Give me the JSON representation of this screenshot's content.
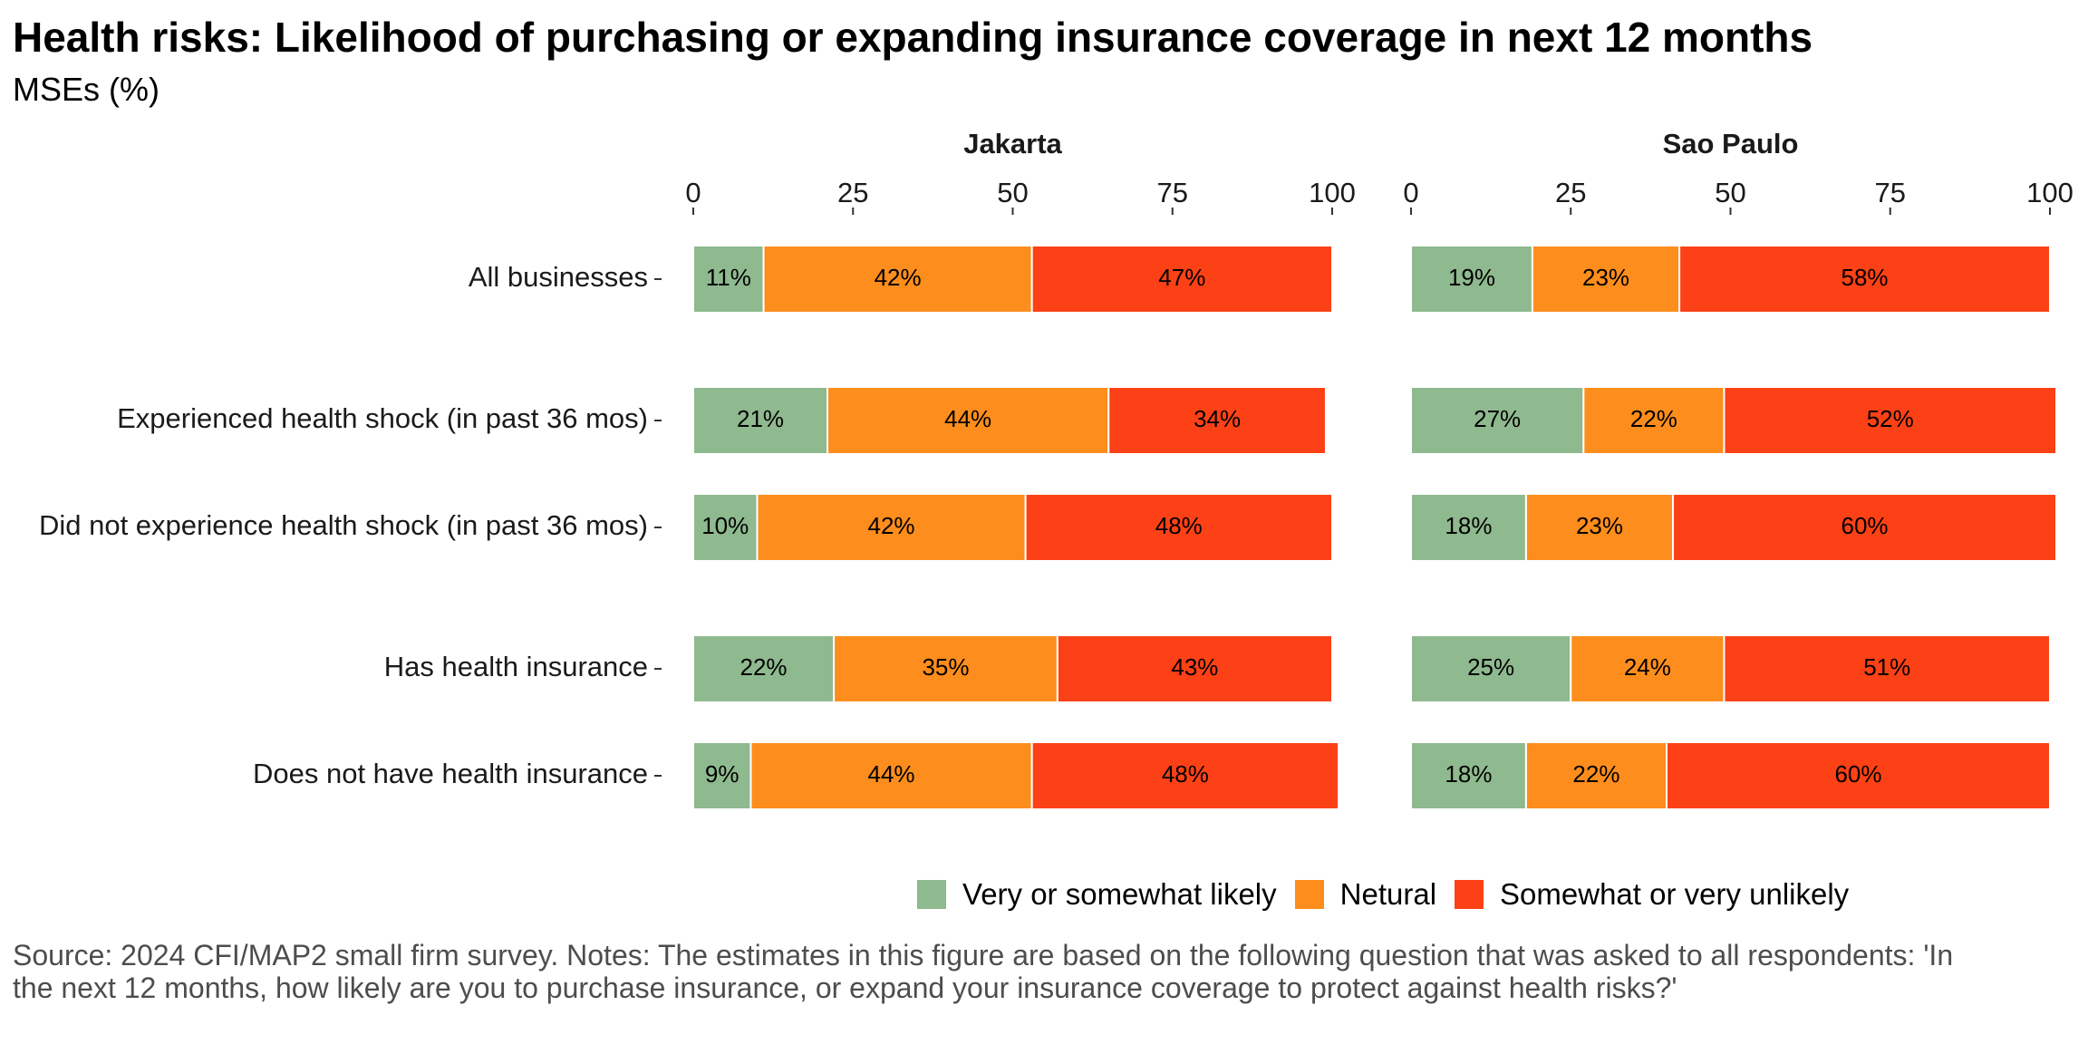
{
  "title": "Health risks: Likelihood of purchasing or expanding insurance coverage in next 12 months",
  "subtitle": "MSEs (%)",
  "source": "Source: 2024 CFI/MAP2 small firm survey. Notes: The estimates in this figure are based on the following question that was asked to all respondents: 'In the next 12 months, how likely are you to purchase insurance, or expand your insurance coverage to protect against health risks?'",
  "colors": {
    "likely": "#8fb98f",
    "neutral": "#fd8d1c",
    "unlikely": "#fc4116"
  },
  "chart_data": {
    "type": "bar",
    "orientation": "horizontal",
    "stacked": true,
    "xlim": [
      0,
      100
    ],
    "x_ticks": [
      0,
      25,
      50,
      75,
      100
    ],
    "legend_position": "bottom",
    "grid": false,
    "categories": [
      "All businesses",
      "Experienced health shock (in past 36 mos)",
      "Did not experience health shock (in past 36 mos)",
      "Has health insurance",
      "Does not have health insurance"
    ],
    "series_names": [
      "Very or somewhat likely",
      "Netural",
      "Somewhat or very unlikely"
    ],
    "panels": [
      {
        "name": "Jakarta",
        "series": [
          {
            "name": "Very or somewhat likely",
            "values": [
              11,
              21,
              10,
              22,
              9
            ]
          },
          {
            "name": "Netural",
            "values": [
              42,
              44,
              42,
              35,
              44
            ]
          },
          {
            "name": "Somewhat or very unlikely",
            "values": [
              47,
              34,
              48,
              43,
              48
            ]
          }
        ]
      },
      {
        "name": "Sao Paulo",
        "series": [
          {
            "name": "Very or somewhat likely",
            "values": [
              19,
              27,
              18,
              25,
              18
            ]
          },
          {
            "name": "Netural",
            "values": [
              23,
              22,
              23,
              24,
              22
            ]
          },
          {
            "name": "Somewhat or very unlikely",
            "values": [
              58,
              52,
              60,
              51,
              60
            ]
          }
        ]
      }
    ]
  }
}
